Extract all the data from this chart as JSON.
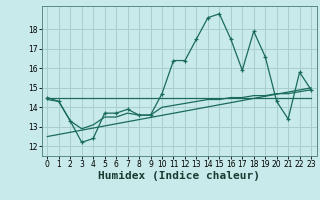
{
  "background_color": "#c8eaea",
  "grid_color": "#aacece",
  "line_color": "#1a6b5a",
  "xlabel": "Humidex (Indice chaleur)",
  "xlabel_fontsize": 8,
  "ylim": [
    11.5,
    19.2
  ],
  "xlim": [
    -0.5,
    23.5
  ],
  "yticks": [
    12,
    13,
    14,
    15,
    16,
    17,
    18
  ],
  "xticks": [
    0,
    1,
    2,
    3,
    4,
    5,
    6,
    7,
    8,
    9,
    10,
    11,
    12,
    13,
    14,
    15,
    16,
    17,
    18,
    19,
    20,
    21,
    22,
    23
  ],
  "line1_x": [
    0,
    1,
    2,
    3,
    4,
    5,
    6,
    7,
    8,
    9,
    10,
    11,
    12,
    13,
    14,
    15,
    16,
    17,
    18,
    19,
    20,
    21,
    22,
    23
  ],
  "line1_y": [
    14.5,
    14.3,
    13.3,
    12.2,
    12.4,
    13.7,
    13.7,
    13.9,
    13.6,
    13.6,
    14.7,
    16.4,
    16.4,
    17.5,
    18.6,
    18.8,
    17.5,
    15.9,
    17.9,
    16.6,
    14.3,
    13.4,
    15.8,
    14.9
  ],
  "line2_x": [
    0,
    1,
    2,
    3,
    4,
    5,
    6,
    7,
    8,
    9,
    10,
    11,
    12,
    13,
    14,
    15,
    16,
    17,
    18,
    19,
    20,
    21,
    22,
    23
  ],
  "line2_y": [
    14.4,
    14.3,
    13.3,
    12.9,
    13.1,
    13.5,
    13.5,
    13.7,
    13.6,
    13.6,
    14.0,
    14.1,
    14.2,
    14.3,
    14.4,
    14.4,
    14.5,
    14.5,
    14.6,
    14.6,
    14.7,
    14.7,
    14.8,
    14.9
  ],
  "line3_x": [
    0,
    23
  ],
  "line3_y": [
    12.5,
    15.0
  ],
  "line4_x": [
    0,
    23
  ],
  "line4_y": [
    14.5,
    14.5
  ]
}
